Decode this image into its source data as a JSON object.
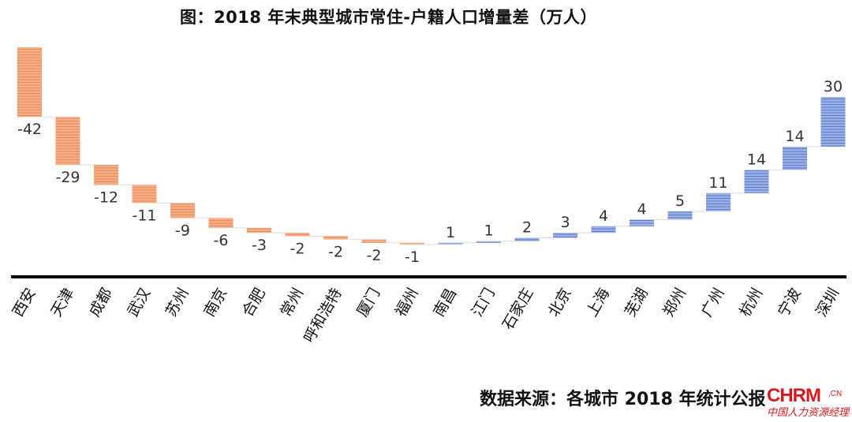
{
  "title": "图：2018 年末典型城市常住-户籍人口增量差（万人）",
  "source": "数据来源：各城市 2018 年统计公报",
  "watermark": {
    "main": "CHRM",
    "suffix": ".CN",
    "sub": "中国人力资源经理"
  },
  "colors": {
    "negative": "#f4a57a",
    "negative_stripe": "#e98b59",
    "positive": "#8ea5e0",
    "positive_stripe": "#5b79c9",
    "connector": "#d9d9d9",
    "axis": "#000000",
    "label": "#333333"
  },
  "chart_data": {
    "type": "waterfall",
    "title": "图：2018 年末典型城市常住-户籍人口增量差（万人）",
    "xlabel": "",
    "ylabel": "",
    "unit": "万人",
    "grid": false,
    "legend": null,
    "categories": [
      "西安",
      "天津",
      "成都",
      "武汉",
      "苏州",
      "南京",
      "合肥",
      "常州",
      "呼和浩特",
      "厦门",
      "福州",
      "南昌",
      "江门",
      "石家庄",
      "北京",
      "上海",
      "芜湖",
      "郑州",
      "广州",
      "杭州",
      "宁波",
      "深圳"
    ],
    "values": [
      -42,
      -29,
      -12,
      -11,
      -9,
      -6,
      -3,
      -2,
      -2,
      -2,
      -1,
      1,
      1,
      2,
      3,
      4,
      4,
      5,
      11,
      14,
      14,
      30
    ],
    "annotation": "数据来源：各城市 2018 年统计公报"
  }
}
